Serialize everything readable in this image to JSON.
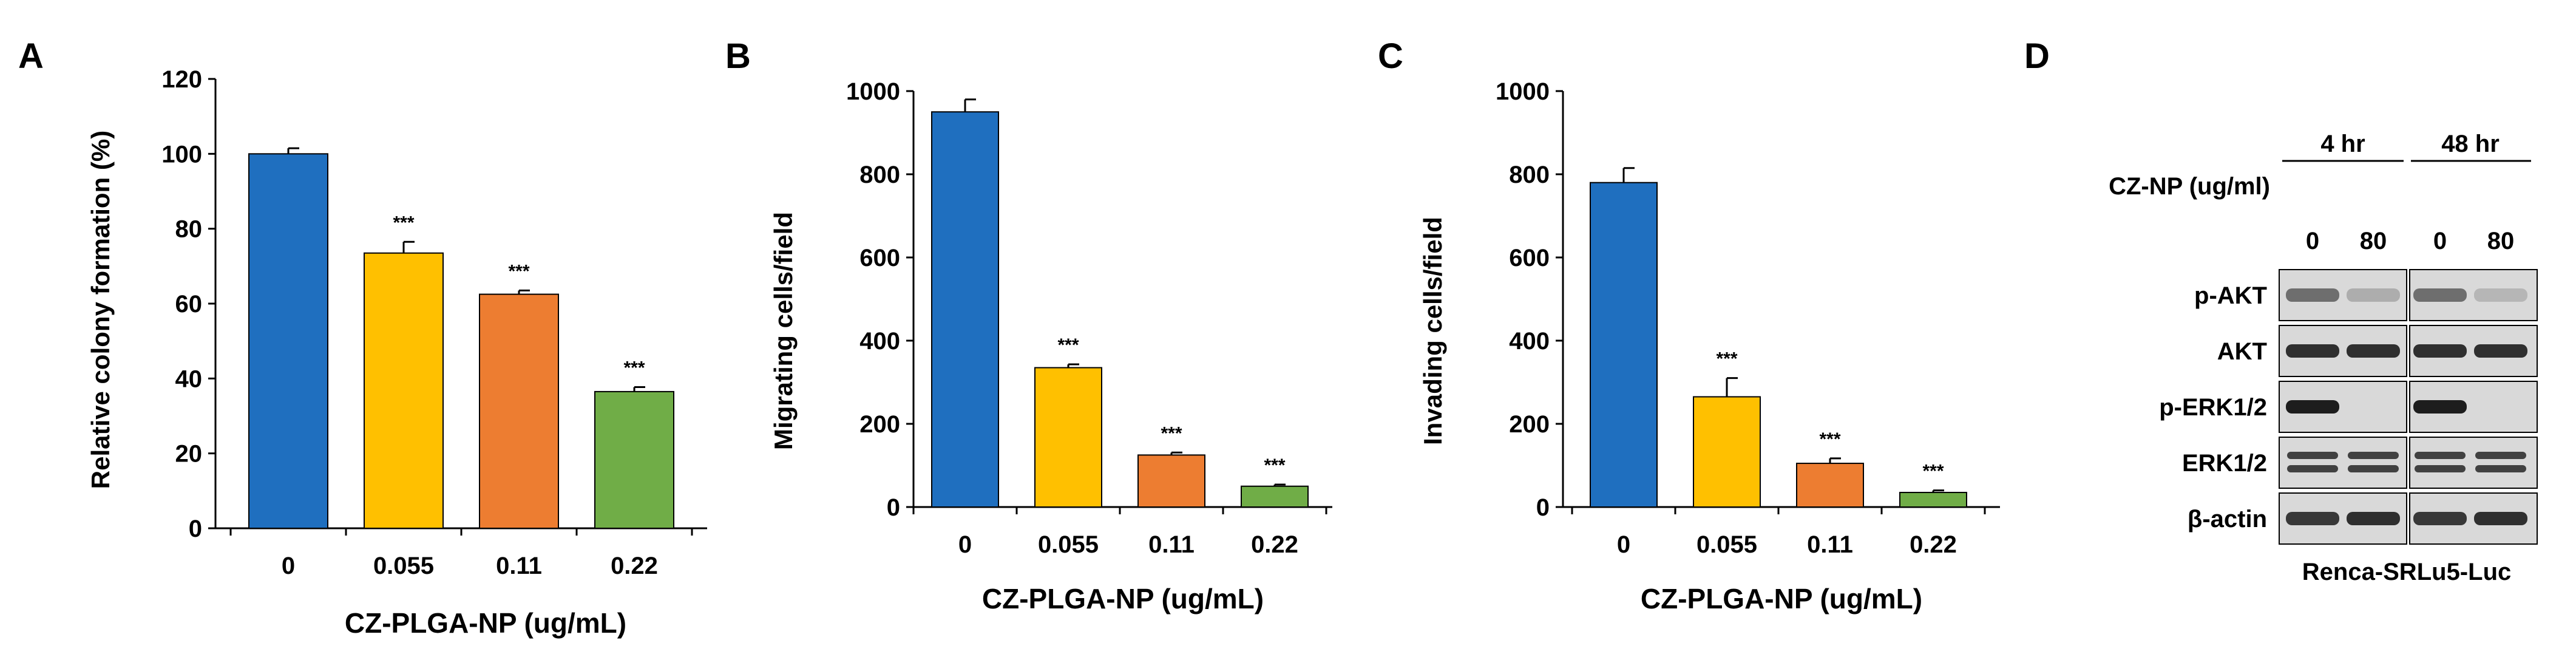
{
  "colors": {
    "c0": "#1F6FBF",
    "c1": "#FFC000",
    "c2": "#ED7D31",
    "c3": "#70AD47",
    "axis": "#000000"
  },
  "chart_data": [
    {
      "panel": "A",
      "type": "bar",
      "categories": [
        "0",
        "0.055",
        "0.11",
        "0.22"
      ],
      "values": [
        100,
        73.5,
        62.5,
        36.5
      ],
      "errors": [
        1.5,
        3,
        1,
        1.2
      ],
      "sig": [
        "",
        "***",
        "***",
        "***"
      ],
      "title": "",
      "xlabel": "CZ-PLGA-NP (ug/mL)",
      "ylabel": "Relative colony formation (%)",
      "ylim": [
        0,
        120
      ],
      "yticks": [
        0,
        20,
        40,
        60,
        80,
        100,
        120
      ]
    },
    {
      "panel": "B",
      "type": "bar",
      "categories": [
        "0",
        "0.055",
        "0.11",
        "0.22"
      ],
      "values": [
        950,
        335,
        125,
        50
      ],
      "errors": [
        30,
        8,
        6,
        4
      ],
      "sig": [
        "",
        "***",
        "***",
        "***"
      ],
      "title": "",
      "xlabel": "CZ-PLGA-NP (ug/mL)",
      "ylabel": "Migrating cells/field",
      "ylim": [
        0,
        1000
      ],
      "yticks": [
        0,
        200,
        400,
        600,
        800,
        1000
      ]
    },
    {
      "panel": "C",
      "type": "bar",
      "categories": [
        "0",
        "0.055",
        "0.11",
        "0.22"
      ],
      "values": [
        780,
        265,
        105,
        35
      ],
      "errors": [
        35,
        45,
        12,
        5
      ],
      "sig": [
        "",
        "***",
        "***",
        "***"
      ],
      "title": "",
      "xlabel": "CZ-PLGA-NP (ug/mL)",
      "ylabel": "Invading cells/field",
      "ylim": [
        0,
        1000
      ],
      "yticks": [
        0,
        200,
        400,
        600,
        800,
        1000
      ]
    }
  ],
  "blot": {
    "panel": "D",
    "treatment_label": "CZ-NP (ug/ml)",
    "timepoints": [
      "4 hr",
      "48 hr"
    ],
    "doses": [
      "0",
      "80",
      "0",
      "80"
    ],
    "rows": [
      {
        "label": "p-AKT",
        "intensity": [
          0.5,
          0.15,
          0.5,
          0.1
        ]
      },
      {
        "label": "AKT",
        "intensity": [
          0.85,
          0.85,
          0.85,
          0.85
        ]
      },
      {
        "label": "p-ERK1/2",
        "intensity": [
          0.95,
          0.0,
          0.95,
          0.0
        ]
      },
      {
        "label": "ERK1/2",
        "intensity": [
          0.75,
          0.75,
          0.75,
          0.75
        ]
      },
      {
        "label": "β-actin",
        "intensity": [
          0.8,
          0.85,
          0.8,
          0.85
        ]
      }
    ],
    "cell_line": "Renca-SRLu5-Luc"
  }
}
